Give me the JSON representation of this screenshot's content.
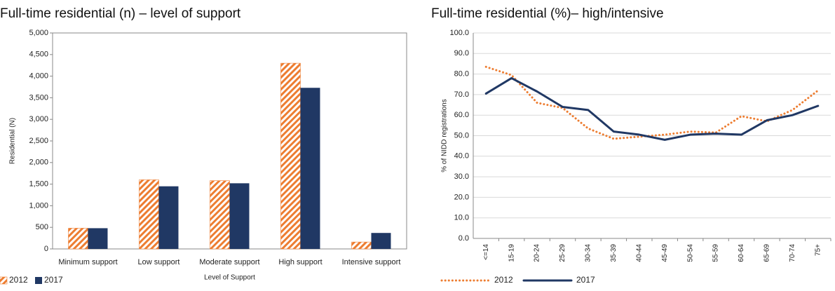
{
  "chart_data": [
    {
      "type": "bar",
      "title": "Full-time residential (n) – level of support",
      "xlabel": "Level of Support",
      "ylabel": "Residential (N)",
      "categories": [
        "Minimum support",
        "Low support",
        "Moderate support",
        "High support",
        "Intensive support"
      ],
      "series": [
        {
          "name": "2012",
          "color": "#ED7D31",
          "pattern": "hatch",
          "values": [
            480,
            1600,
            1580,
            4300,
            160
          ]
        },
        {
          "name": "2017",
          "color": "#203864",
          "pattern": "solid",
          "values": [
            480,
            1450,
            1520,
            3730,
            370
          ]
        }
      ],
      "ylim": [
        0,
        5000
      ],
      "yticks": [
        0,
        500,
        {
          "value": 1000,
          "label": "1,000"
        },
        {
          "value": 1500,
          "label": "1,500"
        },
        {
          "value": 2000,
          "label": "2,000"
        },
        {
          "value": 2500,
          "label": "2,500"
        },
        {
          "value": 3000,
          "label": "3,000"
        },
        {
          "value": 3500,
          "label": "3,500"
        },
        {
          "value": 4000,
          "label": "4,000"
        },
        {
          "value": 4500,
          "label": "4,500"
        },
        {
          "value": 5000,
          "label": "5,000"
        }
      ],
      "grid": false,
      "legend": "bottom-left"
    },
    {
      "type": "line",
      "title": "Full-time residential (%)– high/intensive",
      "ylabel": "% of NIDD registrations",
      "categories": [
        "<=14",
        "15-19",
        "20-24",
        "25-29",
        "30-34",
        "35-39",
        "40-44",
        "45-49",
        "50-54",
        "55-59",
        "60-64",
        "65-69",
        "70-74",
        "75+"
      ],
      "series": [
        {
          "name": "2012",
          "color": "#ED7D31",
          "dash": "dotted",
          "values": [
            83.5,
            79.5,
            66,
            63.5,
            53.5,
            48.5,
            49.5,
            50.5,
            52,
            51.5,
            59.5,
            57,
            62.5,
            72
          ]
        },
        {
          "name": "2017",
          "color": "#203864",
          "dash": "solid",
          "values": [
            70.5,
            78,
            71.5,
            64,
            62.5,
            52,
            50.5,
            48,
            50.5,
            51,
            50.5,
            57.5,
            60,
            64.5
          ]
        }
      ],
      "ylim": [
        0,
        100
      ],
      "yticks": [
        {
          "value": 0,
          "label": "0.0"
        },
        {
          "value": 10,
          "label": "10.0"
        },
        {
          "value": 20,
          "label": "20.0"
        },
        {
          "value": 30,
          "label": "30.0"
        },
        {
          "value": 40,
          "label": "40.0"
        },
        {
          "value": 50,
          "label": "50.0"
        },
        {
          "value": 60,
          "label": "60.0"
        },
        {
          "value": 70,
          "label": "70.0"
        },
        {
          "value": 80,
          "label": "80.0"
        },
        {
          "value": 90,
          "label": "90.0"
        },
        {
          "value": 100,
          "label": "100.0"
        }
      ],
      "grid": true,
      "legend": "bottom-left"
    }
  ]
}
